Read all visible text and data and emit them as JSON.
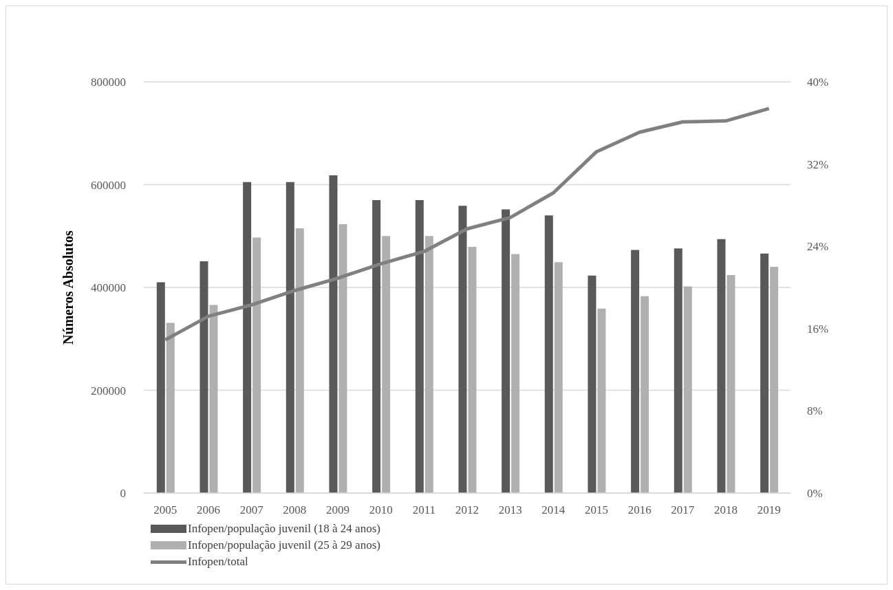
{
  "chart_data": {
    "type": "bar",
    "ylabel": "Números Absolutos",
    "categories": [
      "2005",
      "2006",
      "2007",
      "2008",
      "2009",
      "2010",
      "2011",
      "2012",
      "2013",
      "2014",
      "2015",
      "2016",
      "2017",
      "2018",
      "2019"
    ],
    "series": [
      {
        "name": "Infopen/população juvenil (18 à 24 anos)",
        "color": "#595959",
        "values": [
          410000,
          451000,
          605000,
          605000,
          618000,
          570000,
          570000,
          559000,
          552000,
          540000,
          423000,
          473000,
          476000,
          494000,
          466000
        ]
      },
      {
        "name": "Infopen/população juvenil (25 à 29 anos)",
        "color": "#b0b0b0",
        "values": [
          331000,
          366000,
          497000,
          515000,
          523000,
          500000,
          500000,
          479000,
          465000,
          449000,
          359000,
          383000,
          402000,
          424000,
          440000
        ]
      },
      {
        "name": "Infopen/total",
        "type": "line",
        "axis": "y2",
        "color": "#808080",
        "values": [
          14.9,
          17.2,
          18.3,
          19.7,
          20.9,
          22.3,
          23.5,
          25.7,
          26.8,
          29.2,
          33.2,
          35.1,
          36.1,
          36.2,
          37.4
        ]
      }
    ],
    "ylim": [
      0,
      800000
    ],
    "yticks": [
      0,
      200000,
      400000,
      600000,
      800000
    ],
    "y2lim": [
      0,
      40
    ],
    "y2ticks": [
      {
        "value": 0,
        "label": "0%"
      },
      {
        "value": 8,
        "label": "8%"
      },
      {
        "value": 16,
        "label": "16%"
      },
      {
        "value": 24,
        "label": "24%"
      },
      {
        "value": 32,
        "label": "32%"
      },
      {
        "value": 40,
        "label": "40%"
      }
    ],
    "grid": "y",
    "legend": "bottom left",
    "marker": "none",
    "line_style": "solid"
  }
}
